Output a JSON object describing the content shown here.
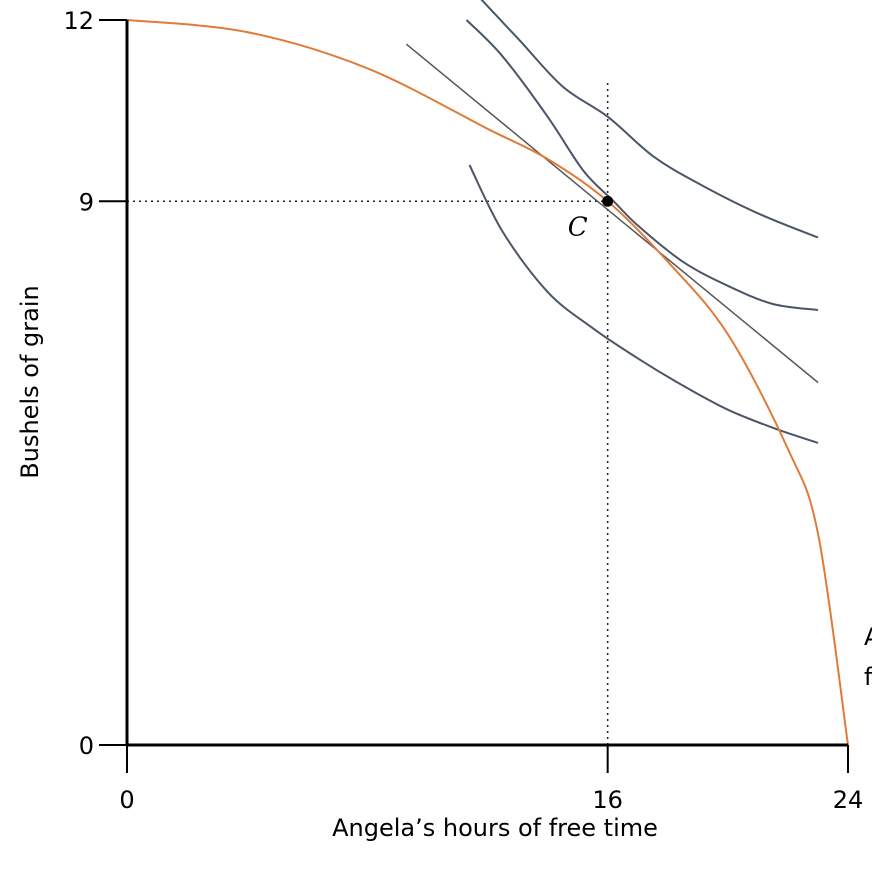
{
  "chart_data": {
    "type": "line",
    "title": "",
    "xlabel": "Angela’s hours of free time",
    "ylabel": "Bushels of grain",
    "xlim": [
      0,
      24
    ],
    "ylim": [
      0,
      12
    ],
    "x_ticks": [
      0,
      16,
      24
    ],
    "y_ticks": [
      0,
      9,
      12
    ],
    "x_tick_labels": [
      "0",
      "16",
      "24"
    ],
    "y_tick_labels": [
      "0",
      "9",
      "12"
    ],
    "grid": false,
    "colors": {
      "frontier": "#e07b39",
      "indifference": "#4a5568",
      "tangent": "#555555",
      "axis": "#000000"
    },
    "frontier": {
      "label_lines": [
        "A",
        "f"
      ],
      "x": [
        0,
        4,
        8,
        12,
        14,
        16,
        18,
        20,
        22,
        23,
        24
      ],
      "y": [
        12,
        11.8,
        11.2,
        10.2,
        9.7,
        9.0,
        8.0,
        6.8,
        4.9,
        3.5,
        0
      ]
    },
    "tangent_line": {
      "x": [
        9.3,
        23
      ],
      "y": [
        11.6,
        6.0
      ]
    },
    "indifference_curves": [
      {
        "x": [
          11.3,
          13,
          14.5,
          16,
          17.5,
          19,
          21,
          23
        ],
        "y": [
          12.6,
          11.7,
          10.9,
          10.4,
          9.75,
          9.3,
          8.8,
          8.4
        ]
      },
      {
        "x": [
          11.3,
          12.5,
          14,
          15.2,
          16.2,
          17,
          18.5,
          20,
          21.5,
          23
        ],
        "y": [
          12.0,
          11.4,
          10.4,
          9.5,
          9.0,
          8.6,
          8.0,
          7.6,
          7.3,
          7.2
        ]
      },
      {
        "x": [
          11.4,
          12.5,
          14,
          15.5,
          17,
          18.5,
          20,
          21.5,
          23
        ],
        "y": [
          9.6,
          8.5,
          7.5,
          6.9,
          6.4,
          5.95,
          5.55,
          5.25,
          5.0
        ]
      }
    ],
    "point": {
      "label": "C",
      "x": 16,
      "y": 9
    },
    "guides": [
      {
        "from": [
          0,
          9
        ],
        "to": [
          16,
          9
        ]
      },
      {
        "from": [
          16,
          0
        ],
        "to": [
          16,
          11
        ]
      }
    ]
  }
}
